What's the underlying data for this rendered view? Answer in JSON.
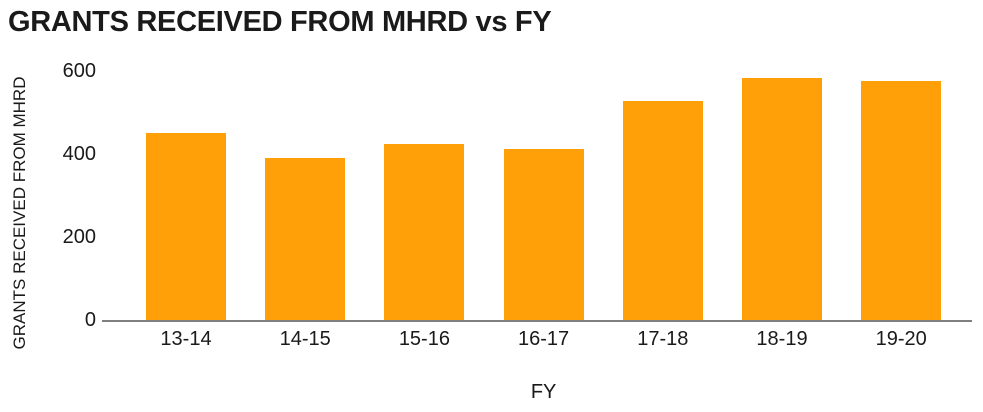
{
  "chart_data": {
    "type": "bar",
    "title": "GRANTS RECEIVED FROM MHRD vs FY",
    "xlabel": "FY",
    "ylabel": "GRANTS RECEIVED FROM MHRD",
    "categories": [
      "13-14",
      "14-15",
      "15-16",
      "16-17",
      "17-18",
      "18-19",
      "19-20"
    ],
    "values": [
      450,
      391,
      423,
      412,
      528,
      582,
      576
    ],
    "yticks": [
      0,
      200,
      400,
      600
    ],
    "ylim": [
      0,
      600
    ],
    "grid": false,
    "legend": "none",
    "colors": {
      "bar": "#FFA008",
      "axis_line": "#7F7F7F",
      "text": "#1A1A1A",
      "background": "#FFFFFF"
    }
  }
}
